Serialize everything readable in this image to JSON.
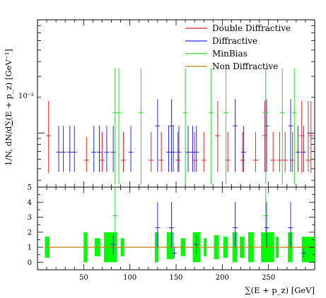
{
  "chart_data": [
    {
      "type": "scatter",
      "panel": "main",
      "ylabel": "1/N, dN/d∑(E + p_z) [GeV⁻¹]",
      "yscale": "log",
      "ylim": [
        0.0035,
        0.09
      ],
      "xlim": [
        0,
        300
      ],
      "grid": false,
      "legend_position": "top-right",
      "yticks": [
        "10⁻²"
      ],
      "legend": [
        "Double Diffractive",
        "Diffractive",
        "MinBias",
        "Non Diffractive"
      ],
      "series": [
        {
          "name": "Double Diffractive",
          "color": "#e8262a",
          "points": [
            {
              "x": 12,
              "y": 0.0095,
              "lo": 0.0046,
              "hi": 0.0186
            },
            {
              "x": 53,
              "y": 0.0059,
              "lo": 0.0047,
              "hi": 0.0093
            },
            {
              "x": 70,
              "y": 0.0059,
              "lo": 0.0047,
              "hi": 0.0102
            },
            {
              "x": 93,
              "y": 0.0059,
              "lo": 0.0047,
              "hi": 0.0102
            },
            {
              "x": 123,
              "y": 0.0059,
              "lo": 0.0047,
              "hi": 0.0102
            },
            {
              "x": 134,
              "y": 0.0059,
              "lo": 0.0047,
              "hi": 0.0102
            },
            {
              "x": 152,
              "y": 0.0059,
              "lo": 0.0047,
              "hi": 0.0102
            },
            {
              "x": 170,
              "y": 0.0059,
              "lo": 0.0047,
              "hi": 0.0102
            },
            {
              "x": 180,
              "y": 0.0059,
              "lo": 0.0047,
              "hi": 0.0102
            },
            {
              "x": 195,
              "y": 0.0095,
              "lo": 0.0047,
              "hi": 0.0186
            },
            {
              "x": 206,
              "y": 0.0059,
              "lo": 0.0047,
              "hi": 0.0102
            },
            {
              "x": 222,
              "y": 0.0059,
              "lo": 0.0047,
              "hi": 0.0102
            },
            {
              "x": 236,
              "y": 0.0059,
              "lo": 0.0047,
              "hi": 0.0102
            },
            {
              "x": 246,
              "y": 0.0095,
              "lo": 0.0047,
              "hi": 0.0186
            },
            {
              "x": 255,
              "y": 0.0059,
              "lo": 0.0047,
              "hi": 0.0102
            },
            {
              "x": 262,
              "y": 0.0059,
              "lo": 0.0047,
              "hi": 0.0102
            },
            {
              "x": 268,
              "y": 0.0059,
              "lo": 0.0047,
              "hi": 0.0102
            },
            {
              "x": 276,
              "y": 0.0059,
              "lo": 0.0047,
              "hi": 0.0102
            },
            {
              "x": 286,
              "y": 0.0095,
              "lo": 0.0046,
              "hi": 0.0186
            },
            {
              "x": 293,
              "y": 0.0059,
              "lo": 0.0047,
              "hi": 0.0186
            },
            {
              "x": 296,
              "y": 0.0095,
              "lo": 0.0046,
              "hi": 0.0186
            }
          ]
        },
        {
          "name": "Diffractive",
          "color": "#2a2ae0",
          "points": [
            {
              "x": 23,
              "y": 0.0069,
              "lo": 0.0047,
              "hi": 0.0115
            },
            {
              "x": 28,
              "y": 0.0069,
              "lo": 0.0047,
              "hi": 0.0115
            },
            {
              "x": 35,
              "y": 0.0069,
              "lo": 0.0047,
              "hi": 0.0115
            },
            {
              "x": 40,
              "y": 0.0069,
              "lo": 0.0047,
              "hi": 0.0115
            },
            {
              "x": 61,
              "y": 0.0069,
              "lo": 0.0047,
              "hi": 0.0115
            },
            {
              "x": 67,
              "y": 0.0069,
              "lo": 0.0047,
              "hi": 0.0115
            },
            {
              "x": 75,
              "y": 0.0069,
              "lo": 0.0047,
              "hi": 0.0115
            },
            {
              "x": 82,
              "y": 0.0069,
              "lo": 0.0047,
              "hi": 0.0115
            },
            {
              "x": 101,
              "y": 0.0069,
              "lo": 0.0047,
              "hi": 0.0115
            },
            {
              "x": 130,
              "y": 0.0115,
              "lo": 0.0047,
              "hi": 0.0193
            },
            {
              "x": 142,
              "y": 0.0069,
              "lo": 0.0047,
              "hi": 0.0115
            },
            {
              "x": 145,
              "y": 0.0115,
              "lo": 0.0047,
              "hi": 0.0193
            },
            {
              "x": 147,
              "y": 0.0069,
              "lo": 0.0047,
              "hi": 0.0115
            },
            {
              "x": 153,
              "y": 0.0069,
              "lo": 0.0047,
              "hi": 0.0115
            },
            {
              "x": 163,
              "y": 0.0069,
              "lo": 0.0047,
              "hi": 0.0115
            },
            {
              "x": 168,
              "y": 0.0069,
              "lo": 0.0047,
              "hi": 0.0115
            },
            {
              "x": 172,
              "y": 0.0069,
              "lo": 0.0047,
              "hi": 0.0115
            },
            {
              "x": 214,
              "y": 0.0115,
              "lo": 0.0047,
              "hi": 0.0193
            },
            {
              "x": 223,
              "y": 0.0069,
              "lo": 0.0047,
              "hi": 0.0115
            },
            {
              "x": 248,
              "y": 0.0115,
              "lo": 0.0047,
              "hi": 0.0193
            },
            {
              "x": 274,
              "y": 0.0115,
              "lo": 0.0047,
              "hi": 0.0193
            },
            {
              "x": 282,
              "y": 0.0069,
              "lo": 0.0047,
              "hi": 0.0115
            },
            {
              "x": 288,
              "y": 0.0069,
              "lo": 0.0047,
              "hi": 0.0115
            }
          ]
        },
        {
          "name": "MinBias",
          "color": "#2ed82e",
          "points": [
            {
              "x": 84,
              "y": 0.0148,
              "lo": 0.0037,
              "hi": 0.035
            },
            {
              "x": 88,
              "y": 0.0148,
              "lo": 0.0037,
              "hi": 0.035
            },
            {
              "x": 112,
              "y": 0.0148,
              "lo": 0.0037,
              "hi": 0.035
            },
            {
              "x": 160,
              "y": 0.0148,
              "lo": 0.0037,
              "hi": 0.035
            },
            {
              "x": 188,
              "y": 0.0148,
              "lo": 0.0037,
              "hi": 0.035
            },
            {
              "x": 204,
              "y": 0.0148,
              "lo": 0.0037,
              "hi": 0.035
            },
            {
              "x": 247,
              "y": 0.0148,
              "lo": 0.0037,
              "hi": 0.035
            },
            {
              "x": 265,
              "y": 0.0148,
              "lo": 0.0037,
              "hi": 0.035
            },
            {
              "x": 278,
              "y": 0.0148,
              "lo": 0.0037,
              "hi": 0.035
            }
          ]
        },
        {
          "name": "Non Diffractive",
          "color": "#b8860b",
          "points": []
        }
      ]
    },
    {
      "type": "scatter",
      "panel": "ratio",
      "xlabel": "∑(E + p_z) [GeV]",
      "xlim": [
        0,
        300
      ],
      "ylim": [
        -0.5,
        5
      ],
      "xticks": [
        50,
        100,
        150,
        200,
        250
      ],
      "yticks": [
        0,
        1,
        2,
        3,
        4,
        5
      ],
      "reference_line": {
        "y": 1,
        "color": "#b8860b"
      },
      "uncertainty_band": {
        "color": "#00ff00",
        "bins": [
          {
            "x0": 8,
            "x1": 13,
            "lo": 0.3,
            "hi": 1.7
          },
          {
            "x0": 50,
            "x1": 54,
            "lo": 0.0,
            "hi": 2.0
          },
          {
            "x0": 62,
            "x1": 68,
            "lo": 0.4,
            "hi": 1.6
          },
          {
            "x0": 72,
            "x1": 86,
            "lo": 0.0,
            "hi": 2.0
          },
          {
            "x0": 90,
            "x1": 94,
            "lo": 0.4,
            "hi": 1.6
          },
          {
            "x0": 127,
            "x1": 131,
            "lo": 0.0,
            "hi": 2.0
          },
          {
            "x0": 140,
            "x1": 147,
            "lo": 0.2,
            "hi": 2.0
          },
          {
            "x0": 155,
            "x1": 160,
            "lo": 0.4,
            "hi": 1.6
          },
          {
            "x0": 168,
            "x1": 176,
            "lo": 0.0,
            "hi": 2.0
          },
          {
            "x0": 180,
            "x1": 183,
            "lo": 0.4,
            "hi": 1.6
          },
          {
            "x0": 191,
            "x1": 196,
            "lo": 0.2,
            "hi": 1.8
          },
          {
            "x0": 201,
            "x1": 206,
            "lo": 0.3,
            "hi": 1.7
          },
          {
            "x0": 211,
            "x1": 216,
            "lo": 0.0,
            "hi": 2.0
          },
          {
            "x0": 219,
            "x1": 224,
            "lo": 0.3,
            "hi": 1.7
          },
          {
            "x0": 228,
            "x1": 234,
            "lo": 0.0,
            "hi": 2.0
          },
          {
            "x0": 242,
            "x1": 256,
            "lo": 0.0,
            "hi": 2.0
          },
          {
            "x0": 258,
            "x1": 261,
            "lo": 0.3,
            "hi": 1.7
          },
          {
            "x0": 271,
            "x1": 276,
            "lo": 0.0,
            "hi": 2.0
          },
          {
            "x0": 286,
            "x1": 300,
            "lo": 0.0,
            "hi": 1.7
          }
        ]
      },
      "series": [
        {
          "name": "MinBias",
          "color": "#2ed82e",
          "points": [
            {
              "x": 84,
              "y": 3.1,
              "lo": 1.5,
              "hi": 5.0
            },
            {
              "x": 247,
              "y": 3.1,
              "lo": 1.5,
              "hi": 5.0
            }
          ]
        },
        {
          "name": "Diffractive",
          "color": "#2a2ae0",
          "points": [
            {
              "x": 130,
              "y": 2.3,
              "lo": 1.0,
              "hi": 4.0
            },
            {
              "x": 145,
              "y": 2.3,
              "lo": 1.0,
              "hi": 4.0
            },
            {
              "x": 148,
              "y": 0.6,
              "lo": 0.3,
              "hi": 1.0
            },
            {
              "x": 214,
              "y": 2.3,
              "lo": 1.0,
              "hi": 4.0
            },
            {
              "x": 248,
              "y": 2.3,
              "lo": 1.0,
              "hi": 4.0
            },
            {
              "x": 274,
              "y": 2.3,
              "lo": 1.0,
              "hi": 4.0
            },
            {
              "x": 82,
              "y": 1.2,
              "lo": 0.5,
              "hi": 1.8
            },
            {
              "x": 172,
              "y": 1.2,
              "lo": 0.5,
              "hi": 1.8
            },
            {
              "x": 288,
              "y": 0.6,
              "lo": 0.3,
              "hi": 0.9
            }
          ]
        }
      ]
    }
  ]
}
